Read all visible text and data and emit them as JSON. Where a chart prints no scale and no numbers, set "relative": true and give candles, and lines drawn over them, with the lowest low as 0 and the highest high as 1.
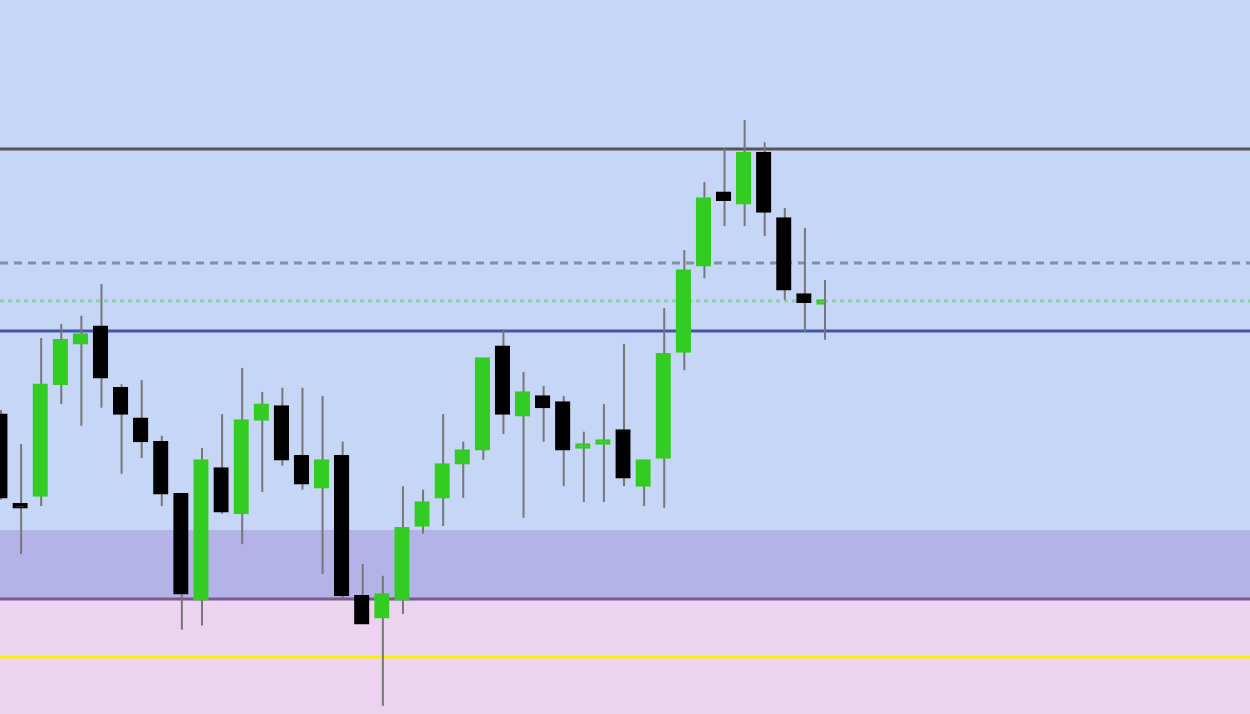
{
  "chart_data": {
    "type": "candlestick",
    "relative": true,
    "categories": [
      null,
      null,
      null,
      null,
      null,
      null,
      null,
      null,
      null,
      null,
      null,
      null,
      null,
      null,
      null,
      null,
      null,
      null,
      null,
      null,
      null,
      null,
      null,
      null,
      null,
      null,
      null,
      null,
      null,
      null,
      null,
      null,
      null,
      null,
      null,
      null,
      null,
      null,
      null,
      null,
      null,
      null
    ],
    "ohlc": [
      [
        0.498,
        0.505,
        0.352,
        0.355
      ],
      [
        0.345,
        0.447,
        0.259,
        0.345
      ],
      [
        0.358,
        0.628,
        0.341,
        0.549
      ],
      [
        0.549,
        0.652,
        0.515,
        0.625
      ],
      [
        0.618,
        0.666,
        0.478,
        0.635
      ],
      [
        0.648,
        0.72,
        0.509,
        0.56
      ],
      [
        0.543,
        0.549,
        0.396,
        0.498
      ],
      [
        0.491,
        0.556,
        0.423,
        0.451
      ],
      [
        0.451,
        0.461,
        0.341,
        0.362
      ],
      [
        0.362,
        0.362,
        0.13,
        0.191
      ],
      [
        0.181,
        0.44,
        0.137,
        0.42
      ],
      [
        0.406,
        0.498,
        0.328,
        0.331
      ],
      [
        0.328,
        0.577,
        0.276,
        0.488
      ],
      [
        0.488,
        0.536,
        0.365,
        0.515
      ],
      [
        0.512,
        0.543,
        0.41,
        0.42
      ],
      [
        0.427,
        0.543,
        0.369,
        0.379
      ],
      [
        0.372,
        0.529,
        0.225,
        0.42
      ],
      [
        0.427,
        0.451,
        0.184,
        0.188
      ],
      [
        0.188,
        0.242,
        0.14,
        0.14
      ],
      [
        0.15,
        0.222,
        0,
        0.191
      ],
      [
        0.181,
        0.375,
        0.157,
        0.304
      ],
      [
        0.307,
        0.369,
        0.294,
        0.348
      ],
      [
        0.355,
        0.498,
        0.307,
        0.413
      ],
      [
        0.413,
        0.451,
        0.355,
        0.437
      ],
      [
        0.437,
        0.594,
        0.42,
        0.594
      ],
      [
        0.614,
        0.642,
        0.464,
        0.498
      ],
      [
        0.495,
        0.57,
        0.321,
        0.536
      ],
      [
        0.529,
        0.546,
        0.451,
        0.509
      ],
      [
        0.519,
        0.529,
        0.375,
        0.437
      ],
      [
        0.44,
        0.468,
        0.348,
        0.447
      ],
      [
        0.447,
        0.515,
        0.348,
        0.454
      ],
      [
        0.471,
        0.618,
        0.375,
        0.389
      ],
      [
        0.375,
        0.42,
        0.341,
        0.42
      ],
      [
        0.423,
        0.679,
        0.338,
        0.601
      ],
      [
        0.604,
        0.778,
        0.573,
        0.744
      ],
      [
        0.751,
        0.894,
        0.73,
        0.867
      ],
      [
        0.877,
        0.952,
        0.819,
        0.863
      ],
      [
        0.857,
        1,
        0.819,
        0.945
      ],
      [
        0.945,
        0.962,
        0.802,
        0.843
      ],
      [
        0.833,
        0.85,
        0.693,
        0.71
      ],
      [
        0.703,
        0.816,
        0.638,
        0.689
      ],
      [
        0.686,
        0.727,
        0.625,
        0.689
      ]
    ],
    "colors": [
      "#000000",
      "#000000",
      "#33cc22",
      "#33cc22",
      "#33cc22",
      "#000000",
      "#000000",
      "#000000",
      "#000000",
      "#000000",
      "#33cc22",
      "#000000",
      "#33cc22",
      "#33cc22",
      "#000000",
      "#000000",
      "#33cc22",
      "#000000",
      "#000000",
      "#33cc22",
      "#33cc22",
      "#33cc22",
      "#33cc22",
      "#33cc22",
      "#33cc22",
      "#000000",
      "#33cc22",
      "#000000",
      "#000000",
      "#33cc22",
      "#33cc22",
      "#000000",
      "#33cc22",
      "#33cc22",
      "#33cc22",
      "#33cc22",
      "#000000",
      "#33cc22",
      "#000000",
      "#000000",
      "#000000",
      "#33cc22"
    ],
    "bands": [
      {
        "axis": "y",
        "from": -0.014,
        "to": 0.184,
        "color": "#ecd3ef"
      },
      {
        "axis": "y",
        "from": 0.184,
        "to": 0.3,
        "color": "#b3b3e8"
      }
    ],
    "ref_lines": [
      {
        "axis": "y",
        "value": 0.085,
        "color": "#ffee00",
        "line_style": "solid"
      },
      {
        "axis": "y",
        "value": 0.184,
        "color": "#7a5a90",
        "line_style": "solid"
      },
      {
        "axis": "y",
        "value": 0.758,
        "color": "#8090a8",
        "line_style": "dashed"
      },
      {
        "axis": "y",
        "value": 0.693,
        "color": "#90d0a8",
        "line_style": "dotted"
      },
      {
        "axis": "y",
        "value": 0.952,
        "color": "#555555",
        "line_style": "solid"
      },
      {
        "axis": "y",
        "value": 0.642,
        "color": "#4455aa",
        "line_style": "solid"
      }
    ],
    "legend": false
  }
}
